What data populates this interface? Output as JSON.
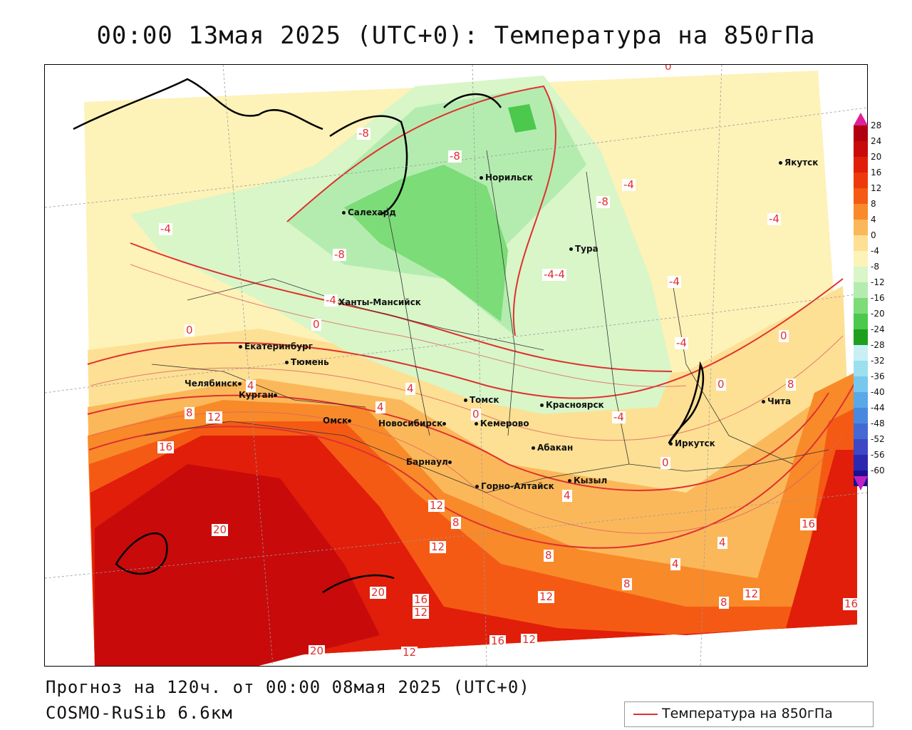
{
  "title": "00:00 13мая 2025 (UTC+0): Температура на 850гПа",
  "forecast_line": "Прогноз на 120ч. от 00:00 08мая 2025 (UTC+0)",
  "model_line": "COSMO-RuSib 6.6км",
  "legend_label": "Температура на 850гПа",
  "colors": {
    "contour": "#e03030"
  },
  "colorbar": {
    "ticks": [
      "28",
      "24",
      "20",
      "16",
      "12",
      "8",
      "4",
      "0",
      "-4",
      "-8",
      "-12",
      "-16",
      "-20",
      "-24",
      "-28",
      "-32",
      "-36",
      "-40",
      "-44",
      "-48",
      "-52",
      "-56",
      "-60"
    ],
    "colors": [
      "#b00010",
      "#c80a0a",
      "#e01e0a",
      "#ee3a0a",
      "#f55a14",
      "#f88a2a",
      "#fbb85a",
      "#fde094",
      "#fdf2b8",
      "#d8f6c8",
      "#b4ecb0",
      "#7cdc78",
      "#4cc84c",
      "#1ea01e",
      "#c8f0f4",
      "#9ce0f0",
      "#78c8ee",
      "#5aa8e8",
      "#4a88e0",
      "#4468d4",
      "#3c48c4",
      "#2c28b0",
      "#1c1090"
    ]
  },
  "cities": [
    {
      "name": "Якутск"
    },
    {
      "name": "Норильск"
    },
    {
      "name": "Салехард"
    },
    {
      "name": "Тура"
    },
    {
      "name": "Ханты-Мансийск"
    },
    {
      "name": "Екатеринбург"
    },
    {
      "name": "Тюмень"
    },
    {
      "name": "Челябинск"
    },
    {
      "name": "Курган"
    },
    {
      "name": "Омск"
    },
    {
      "name": "Новосибирск"
    },
    {
      "name": "Томск"
    },
    {
      "name": "Кемерово"
    },
    {
      "name": "Красноярск"
    },
    {
      "name": "Абакан"
    },
    {
      "name": "Барнаул"
    },
    {
      "name": "Горно-Алтайск"
    },
    {
      "name": "Кызыл"
    },
    {
      "name": "Иркутск"
    },
    {
      "name": "Чита"
    }
  ],
  "isolines": [
    "0",
    "-8",
    "-8",
    "-4",
    "-8",
    "-8",
    "-4",
    "-4",
    "-4-4",
    "-4",
    "-4",
    "0",
    "0",
    "-4",
    "0",
    "4",
    "4",
    "8",
    "12",
    "4",
    "-4",
    "0",
    "0",
    "0",
    "16",
    "8",
    "12",
    "20",
    "4",
    "20",
    "16",
    "12",
    "12",
    "8",
    "8",
    "12",
    "16",
    "12",
    "16",
    "8",
    "12",
    "4",
    "8",
    "4",
    "16",
    "20",
    "12"
  ]
}
